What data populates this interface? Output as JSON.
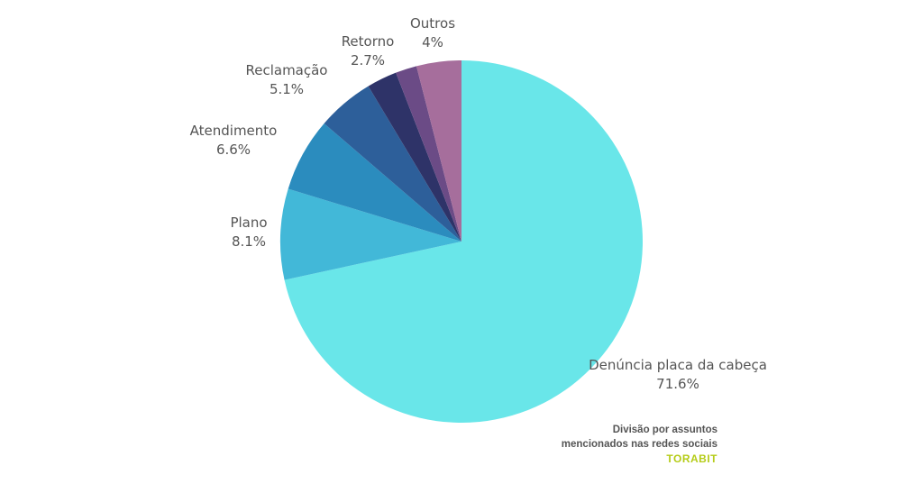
{
  "chart_data": {
    "type": "pie",
    "slices": [
      {
        "label": "Denúncia placa da cabeça",
        "value": 71.6,
        "display": "71.6%",
        "color": "#69e6e9"
      },
      {
        "label": "Plano",
        "value": 8.1,
        "display": "8.1%",
        "color": "#42b8d8"
      },
      {
        "label": "Atendimento",
        "value": 6.6,
        "display": "6.6%",
        "color": "#2b8cbe"
      },
      {
        "label": "Reclamação",
        "value": 5.1,
        "display": "5.1%",
        "color": "#2d5f9a"
      },
      {
        "label": "Retorno",
        "value": 2.7,
        "display": "2.7%",
        "color": "#2e3368"
      },
      {
        "label": "Outros",
        "value": 4,
        "display": "4%",
        "color": "#a66e9c"
      }
    ],
    "extra_slice_color": "#6b4b86",
    "start_angle": "12 o'clock",
    "direction": "clockwise"
  },
  "caption": {
    "line1": "Divisão por assuntos",
    "line2": "mencionados nas redes sociais"
  },
  "brand": {
    "text": "TORABIT",
    "color": "#b5cc18"
  }
}
